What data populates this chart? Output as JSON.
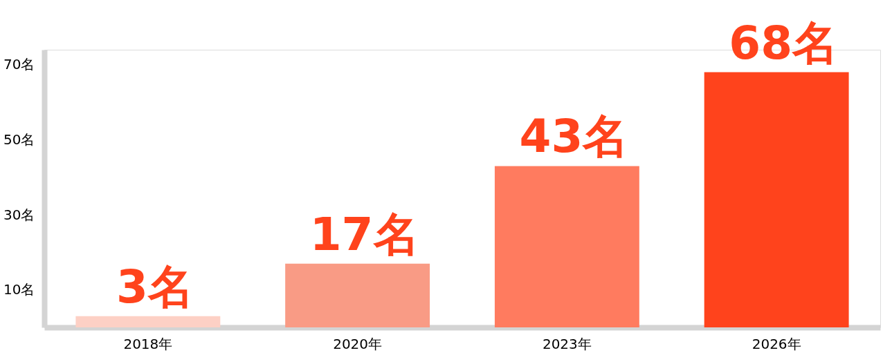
{
  "chart_data": {
    "type": "bar",
    "categories": [
      "2018年",
      "2020年",
      "2023年",
      "2026年"
    ],
    "values": [
      3,
      17,
      43,
      68
    ],
    "colors": [
      "#fdd0c5",
      "#f99b85",
      "#ff7b5f",
      "#ff431c"
    ],
    "value_labels": [
      "3名",
      "17名",
      "43名",
      "68名"
    ],
    "ylim": [
      0,
      74
    ],
    "yticks": [
      {
        "value": 10,
        "label": "10名"
      },
      {
        "value": 30,
        "label": "30名"
      },
      {
        "value": 50,
        "label": "50名"
      },
      {
        "value": 70,
        "label": "70名"
      }
    ],
    "grid": false
  }
}
